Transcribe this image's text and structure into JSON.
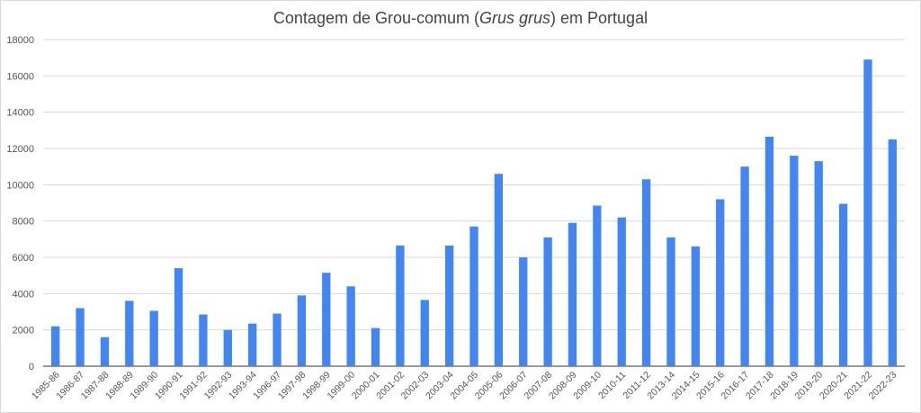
{
  "chart_data": {
    "type": "bar",
    "title_pre": "Contagem de Grou-comum (",
    "title_italic": "Grus grus",
    "title_post": ") em Portugal",
    "categories": [
      "1985-86",
      "1986-87",
      "1987-88",
      "1988-89",
      "1989-90",
      "1990-91",
      "1991-92",
      "1992-93",
      "1993-94",
      "1996-97",
      "1997-98",
      "1998-99",
      "1999-00",
      "2000-01",
      "2001-02",
      "2002-03",
      "2003-04",
      "2004-05",
      "2005-06",
      "2006-07",
      "2007-08",
      "2008-09",
      "2009-10",
      "2010-11",
      "2011-12",
      "2013-14",
      "2014-15",
      "2015-16",
      "2016-17",
      "2017-18",
      "2018-19",
      "2019-20",
      "2020-21",
      "2021-22",
      "2022-23"
    ],
    "values": [
      2200,
      3200,
      1600,
      3600,
      3050,
      5400,
      2850,
      2000,
      2350,
      2900,
      3900,
      5150,
      4400,
      2100,
      6650,
      3650,
      6650,
      7700,
      10600,
      6000,
      7100,
      7900,
      8850,
      8200,
      10300,
      7100,
      6600,
      9200,
      11000,
      12650,
      11600,
      11300,
      8950,
      16900,
      12500
    ],
    "yticks": [
      0,
      2000,
      4000,
      6000,
      8000,
      10000,
      12000,
      14000,
      16000,
      18000
    ],
    "ylim": [
      0,
      18000
    ],
    "bar_color": "#4285f4",
    "grid": true
  }
}
